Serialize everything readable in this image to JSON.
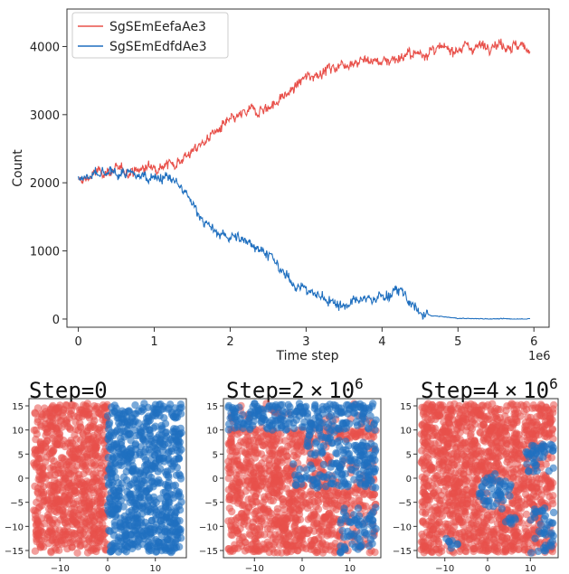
{
  "colors": {
    "series_a": "#e8504a",
    "series_b": "#1f6fbf"
  },
  "chart_data": [
    {
      "type": "line",
      "xlabel": "Time step",
      "ylabel": "Count",
      "x_multiplier_label": "1e6",
      "xlim": [
        -0.15,
        6.2
      ],
      "ylim": [
        -120,
        4550
      ],
      "xticks": [
        0,
        1,
        2,
        3,
        4,
        5,
        6
      ],
      "yticks": [
        0,
        1000,
        2000,
        3000,
        4000
      ],
      "legend_position": "upper-left",
      "series": [
        {
          "name": "SgSEmEefaAe3",
          "x": [
            0,
            0.25,
            0.5,
            0.75,
            1.0,
            1.25,
            1.5,
            1.75,
            2.0,
            2.25,
            2.5,
            2.75,
            3.0,
            3.25,
            3.5,
            3.75,
            4.0,
            4.25,
            4.5,
            4.75,
            5.0,
            5.25,
            5.5,
            5.75,
            5.95
          ],
          "values": [
            2000,
            2150,
            2180,
            2170,
            2250,
            2280,
            2450,
            2700,
            2900,
            3050,
            3100,
            3300,
            3550,
            3650,
            3750,
            3800,
            3780,
            3850,
            3900,
            3950,
            3980,
            4000,
            4050,
            4000,
            3980
          ]
        },
        {
          "name": "SgSEmEdfdAe3",
          "x": [
            0,
            0.25,
            0.5,
            0.75,
            1.0,
            1.25,
            1.5,
            1.75,
            2.0,
            2.25,
            2.5,
            2.75,
            3.0,
            3.25,
            3.5,
            3.75,
            4.0,
            4.25,
            4.5,
            4.75,
            5.0,
            5.25,
            5.5,
            5.75,
            5.95
          ],
          "values": [
            2050,
            2100,
            2150,
            2100,
            2100,
            2050,
            1700,
            1300,
            1200,
            1150,
            950,
            600,
            420,
            300,
            200,
            280,
            330,
            420,
            60,
            40,
            10,
            5,
            3,
            2,
            2
          ]
        }
      ]
    },
    {
      "type": "scatter",
      "title": "Step=0",
      "xlim": [
        -16.5,
        16.5
      ],
      "ylim": [
        -16.5,
        16.5
      ],
      "xticks": [
        -10,
        0,
        10
      ],
      "yticks": [
        -15,
        -10,
        -5,
        0,
        5,
        10,
        15
      ],
      "regions": "red fills x<0, blue fills x>0"
    },
    {
      "type": "scatter",
      "title_base": "Step=2",
      "title_times": "×",
      "title_exp_base": "10",
      "title_exp": "6",
      "xlim": [
        -16.5,
        16.5
      ],
      "ylim": [
        -16.5,
        16.5
      ],
      "xticks": [
        -10,
        0,
        10
      ],
      "yticks": [
        -15,
        -10,
        -5,
        0,
        5,
        10,
        15
      ],
      "regions": "blue occupies top band and right-side patches"
    },
    {
      "type": "scatter",
      "title_base": "Step=4",
      "title_times": "×",
      "title_exp_base": "10",
      "title_exp": "6",
      "xlim": [
        -16.5,
        16.5
      ],
      "ylim": [
        -16.5,
        16.5
      ],
      "xticks": [
        -10,
        0,
        10
      ],
      "yticks": [
        -15,
        -10,
        -5,
        0,
        5,
        10,
        15
      ],
      "regions": "mostly red with a central blue cluster and small blue patches"
    }
  ]
}
